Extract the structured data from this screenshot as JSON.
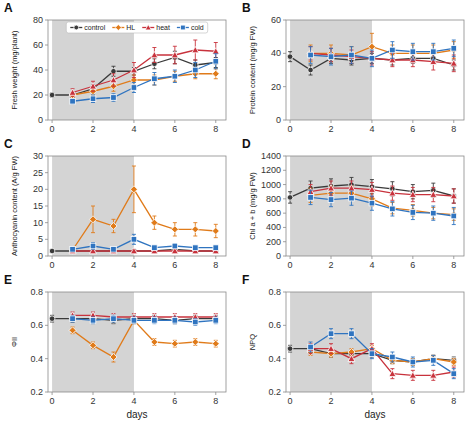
{
  "chart_data": [
    {
      "type": "line",
      "title": "A",
      "x_label": null,
      "y_label": "Fresh weight (mg/plant)",
      "x": [
        0,
        1,
        2,
        3,
        4,
        5,
        6,
        7,
        8
      ],
      "xlim": [
        -0.2,
        8.5
      ],
      "xticks": [
        0,
        2,
        4,
        6,
        8
      ],
      "ylim": [
        0,
        80
      ],
      "yticks": [
        0,
        20,
        40,
        60,
        80
      ],
      "shaded": {
        "x": [
          0,
          4
        ],
        "color": "#d4d4d4"
      },
      "legend": "upper center",
      "series": [
        {
          "name": "control",
          "marker": "circle",
          "values": [
            20,
            20,
            25,
            39,
            39,
            45,
            50,
            44,
            46
          ],
          "errors": [
            2,
            2,
            3,
            4,
            3,
            4,
            5,
            4,
            4
          ]
        },
        {
          "name": "HL",
          "marker": "diamond",
          "values": [
            null,
            20,
            23,
            27,
            32,
            32,
            35,
            37,
            37
          ],
          "errors": [
            null,
            2,
            3,
            4,
            4,
            4,
            4,
            4,
            4
          ]
        },
        {
          "name": "heat",
          "marker": "triangle",
          "values": [
            null,
            22,
            27,
            32,
            40,
            52,
            52,
            56,
            55
          ],
          "errors": [
            null,
            3,
            4,
            5,
            6,
            6,
            7,
            8,
            7
          ]
        },
        {
          "name": "cold",
          "marker": "square",
          "values": [
            null,
            15,
            17,
            18,
            26,
            33,
            35,
            40,
            47
          ],
          "errors": [
            null,
            2,
            3,
            3,
            4,
            5,
            5,
            6,
            6
          ]
        }
      ]
    },
    {
      "type": "line",
      "title": "B",
      "x_label": null,
      "y_label": "Protein content (mg/g FW)",
      "x": [
        0,
        1,
        2,
        3,
        4,
        5,
        6,
        7,
        8
      ],
      "xlim": [
        -0.2,
        8.5
      ],
      "xticks": [
        0,
        2,
        4,
        6,
        8
      ],
      "ylim": [
        0,
        60
      ],
      "yticks": [
        0,
        20,
        40,
        60
      ],
      "shaded": {
        "x": [
          0,
          4
        ],
        "color": "#d4d4d4"
      },
      "series": [
        {
          "name": "control",
          "marker": "circle",
          "values": [
            38,
            30,
            37,
            36,
            37,
            36,
            37,
            37,
            33
          ],
          "errors": [
            3,
            3,
            3,
            3,
            3,
            3,
            3,
            3,
            3
          ]
        },
        {
          "name": "HL",
          "marker": "diamond",
          "values": [
            null,
            40,
            40,
            39,
            44,
            40,
            40,
            40,
            42
          ],
          "errors": [
            null,
            5,
            5,
            5,
            8,
            5,
            5,
            5,
            5
          ]
        },
        {
          "name": "heat",
          "marker": "triangle",
          "values": [
            null,
            40,
            39,
            38,
            37,
            36,
            36,
            35,
            34
          ],
          "errors": [
            null,
            4,
            4,
            4,
            4,
            4,
            4,
            5,
            5
          ]
        },
        {
          "name": "cold",
          "marker": "square",
          "values": [
            null,
            39,
            38,
            39,
            37,
            42,
            41,
            41,
            43
          ],
          "errors": [
            null,
            5,
            5,
            5,
            5,
            5,
            5,
            5,
            5
          ]
        }
      ]
    },
    {
      "type": "line",
      "title": "C",
      "x_label": null,
      "y_label": "Anthocyanin content (A/g FW)",
      "x": [
        0,
        1,
        2,
        3,
        4,
        5,
        6,
        7,
        8
      ],
      "xlim": [
        -0.2,
        8.5
      ],
      "xticks": [
        0,
        2,
        4,
        6,
        8
      ],
      "ylim": [
        0,
        30
      ],
      "yticks": [
        0,
        5,
        10,
        15,
        20,
        25,
        30
      ],
      "shaded": {
        "x": [
          0,
          4
        ],
        "color": "#d4d4d4"
      },
      "series": [
        {
          "name": "control",
          "marker": "circle",
          "values": [
            1.5,
            1.5,
            1.5,
            1.5,
            1.5,
            1.5,
            2.0,
            1.5,
            1.5
          ],
          "errors": [
            0.2,
            0.2,
            0.3,
            0.3,
            0.3,
            0.3,
            0.3,
            0.3,
            0.3
          ]
        },
        {
          "name": "HL",
          "marker": "diamond",
          "values": [
            null,
            1.8,
            11,
            9,
            20,
            10,
            8,
            8,
            7.5
          ],
          "errors": [
            null,
            0.5,
            4,
            2,
            7,
            2,
            2,
            2,
            2
          ]
        },
        {
          "name": "heat",
          "marker": "triangle",
          "values": [
            null,
            1.5,
            1.5,
            1.5,
            1.5,
            1.5,
            1.5,
            1.5,
            1.5
          ],
          "errors": [
            null,
            0.2,
            0.3,
            0.3,
            0.3,
            0.3,
            0.3,
            0.3,
            0.3
          ]
        },
        {
          "name": "cold",
          "marker": "square",
          "values": [
            null,
            2,
            3,
            2,
            5,
            2.5,
            3,
            2.5,
            2.5
          ],
          "errors": [
            null,
            0.3,
            1,
            0.5,
            1.5,
            0.5,
            0.7,
            0.5,
            0.5
          ]
        }
      ]
    },
    {
      "type": "line",
      "title": "D",
      "x_label": null,
      "y_label": "Chl a + b (mg/g FW)",
      "x": [
        0,
        1,
        2,
        3,
        4,
        5,
        6,
        7,
        8
      ],
      "xlim": [
        -0.2,
        8.5
      ],
      "xticks": [
        0,
        2,
        4,
        6,
        8
      ],
      "ylim": [
        0,
        1400
      ],
      "yticks": [
        0,
        200,
        400,
        600,
        800,
        1000,
        1200,
        1400
      ],
      "shaded": {
        "x": [
          0,
          4
        ],
        "color": "#d4d4d4"
      },
      "series": [
        {
          "name": "control",
          "marker": "circle",
          "values": [
            820,
            950,
            980,
            1000,
            970,
            940,
            900,
            920,
            840
          ],
          "errors": [
            80,
            100,
            100,
            100,
            100,
            100,
            100,
            100,
            100
          ]
        },
        {
          "name": "HL",
          "marker": "diamond",
          "values": [
            null,
            850,
            880,
            880,
            800,
            670,
            640,
            600,
            580
          ],
          "errors": [
            null,
            100,
            100,
            100,
            100,
            80,
            80,
            80,
            80
          ]
        },
        {
          "name": "heat",
          "marker": "triangle",
          "values": [
            null,
            900,
            950,
            950,
            930,
            880,
            860,
            860,
            840
          ],
          "errors": [
            null,
            100,
            100,
            100,
            100,
            100,
            100,
            100,
            100
          ]
        },
        {
          "name": "cold",
          "marker": "square",
          "values": [
            null,
            820,
            790,
            810,
            740,
            660,
            610,
            600,
            560
          ],
          "errors": [
            null,
            100,
            100,
            100,
            100,
            100,
            100,
            100,
            120
          ]
        }
      ]
    },
    {
      "type": "line",
      "title": "E",
      "x_label": "days",
      "y_label": "ΦII",
      "x": [
        0,
        1,
        2,
        3,
        4,
        5,
        6,
        7,
        8
      ],
      "xlim": [
        -0.2,
        8.5
      ],
      "xticks": [
        0,
        2,
        4,
        6,
        8
      ],
      "ylim": [
        0.2,
        0.8
      ],
      "yticks": [
        0.2,
        0.4,
        0.6,
        0.8
      ],
      "shaded": {
        "x": [
          0,
          4
        ],
        "color": "#d4d4d4"
      },
      "series": [
        {
          "name": "control",
          "marker": "circle",
          "values": [
            0.64,
            0.64,
            0.64,
            0.63,
            0.64,
            0.64,
            0.63,
            0.64,
            0.64
          ],
          "errors": [
            0.02,
            0.02,
            0.02,
            0.02,
            0.02,
            0.02,
            0.02,
            0.02,
            0.02
          ]
        },
        {
          "name": "HL",
          "marker": "diamond",
          "values": [
            null,
            0.57,
            0.48,
            0.41,
            0.63,
            0.5,
            0.49,
            0.5,
            0.49
          ],
          "errors": [
            null,
            0.02,
            0.02,
            0.03,
            0.02,
            0.02,
            0.02,
            0.02,
            0.02
          ]
        },
        {
          "name": "heat",
          "marker": "triangle",
          "values": [
            null,
            0.66,
            0.66,
            0.65,
            0.65,
            0.65,
            0.65,
            0.65,
            0.65
          ],
          "errors": [
            null,
            0.02,
            0.02,
            0.02,
            0.02,
            0.02,
            0.02,
            0.02,
            0.02
          ]
        },
        {
          "name": "cold",
          "marker": "square",
          "values": [
            null,
            0.64,
            0.63,
            0.64,
            0.63,
            0.63,
            0.63,
            0.62,
            0.63
          ],
          "errors": [
            null,
            0.02,
            0.02,
            0.02,
            0.02,
            0.02,
            0.02,
            0.02,
            0.02
          ]
        }
      ]
    },
    {
      "type": "line",
      "title": "F",
      "x_label": "days",
      "y_label": "NPQ",
      "x": [
        0,
        1,
        2,
        3,
        4,
        5,
        6,
        7,
        8
      ],
      "xlim": [
        -0.2,
        8.5
      ],
      "xticks": [
        0,
        2,
        4,
        6,
        8
      ],
      "ylim": [
        0.2,
        0.8
      ],
      "yticks": [
        0.2,
        0.4,
        0.6,
        0.8
      ],
      "shaded": {
        "x": [
          0,
          4
        ],
        "color": "#d4d4d4"
      },
      "series": [
        {
          "name": "control",
          "marker": "circle",
          "values": [
            0.46,
            0.46,
            0.43,
            0.43,
            0.43,
            0.39,
            0.38,
            0.4,
            0.39
          ],
          "errors": [
            0.02,
            0.02,
            0.02,
            0.02,
            0.02,
            0.02,
            0.02,
            0.02,
            0.02
          ]
        },
        {
          "name": "HL",
          "marker": "diamond",
          "values": [
            null,
            0.44,
            0.43,
            0.44,
            0.46,
            0.39,
            0.38,
            0.4,
            0.38
          ],
          "errors": [
            null,
            0.02,
            0.02,
            0.02,
            0.02,
            0.02,
            0.02,
            0.02,
            0.02
          ]
        },
        {
          "name": "heat",
          "marker": "triangle",
          "values": [
            null,
            0.46,
            0.46,
            0.4,
            0.46,
            0.31,
            0.3,
            0.3,
            0.32
          ],
          "errors": [
            null,
            0.03,
            0.03,
            0.03,
            0.03,
            0.03,
            0.03,
            0.03,
            0.03
          ]
        },
        {
          "name": "cold",
          "marker": "square",
          "values": [
            null,
            0.47,
            0.55,
            0.55,
            0.43,
            0.41,
            0.38,
            0.39,
            0.31
          ],
          "errors": [
            null,
            0.03,
            0.03,
            0.03,
            0.03,
            0.03,
            0.03,
            0.03,
            0.03
          ]
        }
      ]
    }
  ]
}
